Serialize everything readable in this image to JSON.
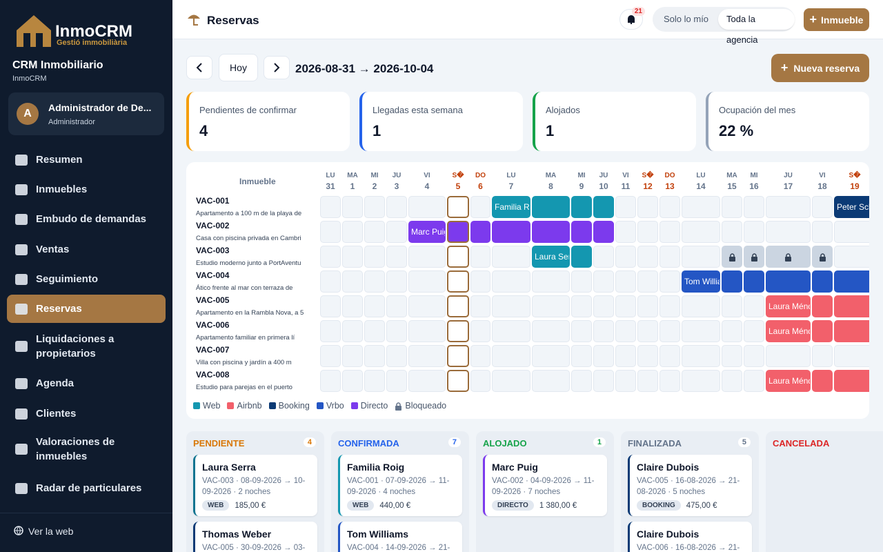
{
  "brand": {
    "name": "InmoCRM",
    "tagline": "Gestió immobiliària"
  },
  "org": {
    "name": "CRM Inmobiliario",
    "sub": "InmoCRM"
  },
  "user": {
    "initial": "A",
    "name": "Administrador de De...",
    "role": "Administrador"
  },
  "nav": [
    {
      "label": "Resumen"
    },
    {
      "label": "Inmuebles"
    },
    {
      "label": "Embudo de demandas"
    },
    {
      "label": "Ventas"
    },
    {
      "label": "Seguimiento"
    },
    {
      "label": "Reservas",
      "active": true
    },
    {
      "label": "Liquidaciones a propietarios"
    },
    {
      "label": "Agenda"
    },
    {
      "label": "Clientes"
    },
    {
      "label": "Valoraciones de inmuebles"
    },
    {
      "label": "Radar de particulares"
    }
  ],
  "footer_link": "Ver la web",
  "header": {
    "title": "Reservas",
    "notifications": "21",
    "scope": [
      {
        "label": "Solo lo mío"
      },
      {
        "label": "Toda la agencia",
        "active": true
      }
    ],
    "button": "Inmueble"
  },
  "toolbar": {
    "today": "Hoy",
    "range": "2026-08-31 → 2026-10-04",
    "new_button": "Nueva reserva"
  },
  "stats": [
    {
      "label": "Pendientes de confirmar",
      "value": "4",
      "color": "#f59e0b"
    },
    {
      "label": "Llegadas esta semana",
      "value": "1",
      "color": "#2563eb"
    },
    {
      "label": "Alojados",
      "value": "1",
      "color": "#16a34a"
    },
    {
      "label": "Ocupación del mes",
      "value": "22 %",
      "color": "#94a3b8"
    }
  ],
  "calendar": {
    "header": "Inmueble",
    "days": [
      {
        "dow": "LU",
        "day": "31"
      },
      {
        "dow": "MA",
        "day": "1"
      },
      {
        "dow": "MI",
        "day": "2"
      },
      {
        "dow": "JU",
        "day": "3"
      },
      {
        "dow": "VI",
        "day": "4"
      },
      {
        "dow": "S�",
        "day": "5",
        "weekend": true,
        "today": true
      },
      {
        "dow": "DO",
        "day": "6",
        "weekend": true
      },
      {
        "dow": "LU",
        "day": "7"
      },
      {
        "dow": "MA",
        "day": "8"
      },
      {
        "dow": "MI",
        "day": "9"
      },
      {
        "dow": "JU",
        "day": "10"
      },
      {
        "dow": "VI",
        "day": "11"
      },
      {
        "dow": "S�",
        "day": "12",
        "weekend": true
      },
      {
        "dow": "DO",
        "day": "13",
        "weekend": true
      },
      {
        "dow": "LU",
        "day": "14"
      },
      {
        "dow": "MA",
        "day": "15"
      },
      {
        "dow": "MI",
        "day": "16"
      },
      {
        "dow": "JU",
        "day": "17"
      },
      {
        "dow": "VI",
        "day": "18"
      },
      {
        "dow": "S�",
        "day": "19",
        "weekend": true
      }
    ],
    "rows": [
      {
        "code": "VAC-001",
        "desc": "Apartamento a 100 m de la playa de",
        "cells": [
          null,
          null,
          null,
          null,
          null,
          null,
          null,
          {
            "channel": "Web",
            "label": "Familia Ro"
          },
          {
            "channel": "Web"
          },
          {
            "channel": "Web"
          },
          {
            "channel": "Web"
          },
          null,
          null,
          null,
          null,
          null,
          null,
          null,
          null,
          {
            "channel": "Booking",
            "label": "Peter Schr"
          }
        ]
      },
      {
        "code": "VAC-002",
        "desc": "Casa con piscina privada en Cambri",
        "cells": [
          null,
          null,
          null,
          null,
          {
            "channel": "Directo",
            "label": "Marc Puig"
          },
          {
            "channel": "Directo"
          },
          {
            "channel": "Directo"
          },
          {
            "channel": "Directo"
          },
          {
            "channel": "Directo"
          },
          {
            "channel": "Directo"
          },
          {
            "channel": "Directo"
          },
          null,
          null,
          null,
          null,
          null,
          null,
          null,
          null,
          null
        ]
      },
      {
        "code": "VAC-003",
        "desc": "Estudio moderno junto a PortAventu",
        "cells": [
          null,
          null,
          null,
          null,
          null,
          null,
          null,
          null,
          {
            "channel": "Web",
            "label": "Laura Serr"
          },
          {
            "channel": "Web"
          },
          null,
          null,
          null,
          null,
          null,
          {
            "channel": "Bloqueado"
          },
          {
            "channel": "Bloqueado"
          },
          {
            "channel": "Bloqueado"
          },
          {
            "channel": "Bloqueado"
          },
          null
        ]
      },
      {
        "code": "VAC-004",
        "desc": "Ático frente al mar con terraza de",
        "cells": [
          null,
          null,
          null,
          null,
          null,
          null,
          null,
          null,
          null,
          null,
          null,
          null,
          null,
          null,
          {
            "channel": "Vrbo",
            "label": "Tom Willia"
          },
          {
            "channel": "Vrbo"
          },
          {
            "channel": "Vrbo"
          },
          {
            "channel": "Vrbo"
          },
          {
            "channel": "Vrbo"
          },
          {
            "channel": "Vrbo"
          }
        ]
      },
      {
        "code": "VAC-005",
        "desc": "Apartamento en la Rambla Nova, a 5",
        "cells": [
          null,
          null,
          null,
          null,
          null,
          null,
          null,
          null,
          null,
          null,
          null,
          null,
          null,
          null,
          null,
          null,
          null,
          {
            "channel": "Airbnb",
            "label": "Laura Ménd"
          },
          {
            "channel": "Airbnb"
          },
          {
            "channel": "Airbnb"
          }
        ]
      },
      {
        "code": "VAC-006",
        "desc": "Apartamento familiar en primera lí",
        "cells": [
          null,
          null,
          null,
          null,
          null,
          null,
          null,
          null,
          null,
          null,
          null,
          null,
          null,
          null,
          null,
          null,
          null,
          {
            "channel": "Airbnb",
            "label": "Laura Ménd"
          },
          {
            "channel": "Airbnb"
          },
          {
            "channel": "Airbnb"
          }
        ]
      },
      {
        "code": "VAC-007",
        "desc": "Villa con piscina y jardín a 400 m",
        "cells": [
          null,
          null,
          null,
          null,
          null,
          null,
          null,
          null,
          null,
          null,
          null,
          null,
          null,
          null,
          null,
          null,
          null,
          null,
          null,
          null
        ]
      },
      {
        "code": "VAC-008",
        "desc": "Estudio para parejas en el puerto",
        "cells": [
          null,
          null,
          null,
          null,
          null,
          null,
          null,
          null,
          null,
          null,
          null,
          null,
          null,
          null,
          null,
          null,
          null,
          {
            "channel": "Airbnb",
            "label": "Laura Ménd"
          },
          {
            "channel": "Airbnb"
          },
          {
            "channel": "Airbnb"
          }
        ]
      }
    ],
    "legend": [
      {
        "name": "Web",
        "color": "#1497b0"
      },
      {
        "name": "Airbnb",
        "color": "#f2606b"
      },
      {
        "name": "Booking",
        "color": "#0b3a75"
      },
      {
        "name": "Vrbo",
        "color": "#2456c4"
      },
      {
        "name": "Directo",
        "color": "#7c3aed"
      },
      {
        "name": "Bloqueado",
        "color": "#cbd5e1"
      }
    ]
  },
  "board": [
    {
      "title": "PENDIENTE",
      "count": "4",
      "color": "#d97706",
      "cards": [
        {
          "name": "Laura Serra",
          "info": "VAC-003 · 08-09-2026 → 10-09-2026 · 2 noches",
          "badge": "WEB",
          "price": "185,00 €",
          "color": "#0e7490"
        },
        {
          "name": "Thomas Weber",
          "info": "VAC-005 · 30-09-2026 → 03-",
          "color": "#0b3a75"
        }
      ]
    },
    {
      "title": "CONFIRMADA",
      "count": "7",
      "color": "#2563eb",
      "cards": [
        {
          "name": "Familia Roig",
          "info": "VAC-001 · 07-09-2026 → 11-09-2026 · 4 noches",
          "badge": "WEB",
          "price": "440,00 €",
          "color": "#1497b0"
        },
        {
          "name": "Tom Williams",
          "info": "VAC-004 · 14-09-2026 → 21-",
          "color": "#2456c4"
        }
      ]
    },
    {
      "title": "ALOJADO",
      "count": "1",
      "color": "#16a34a",
      "cards": [
        {
          "name": "Marc Puig",
          "info": "VAC-002 · 04-09-2026 → 11-09-2026 · 7 noches",
          "badge": "DIRECTO",
          "price": "1 380,00 €",
          "color": "#7c3aed"
        }
      ]
    },
    {
      "title": "FINALIZADA",
      "count": "5",
      "color": "#64748b",
      "cards": [
        {
          "name": "Claire Dubois",
          "info": "VAC-005 · 16-08-2026 → 21-08-2026 · 5 noches",
          "badge": "BOOKING",
          "price": "475,00 €",
          "color": "#0b3a75"
        },
        {
          "name": "Claire Dubois",
          "info": "VAC-006 · 16-08-2026 → 21-",
          "color": "#0b3a75"
        }
      ]
    },
    {
      "title": "CANCELADA",
      "color": "#dc2626",
      "cards": []
    }
  ]
}
